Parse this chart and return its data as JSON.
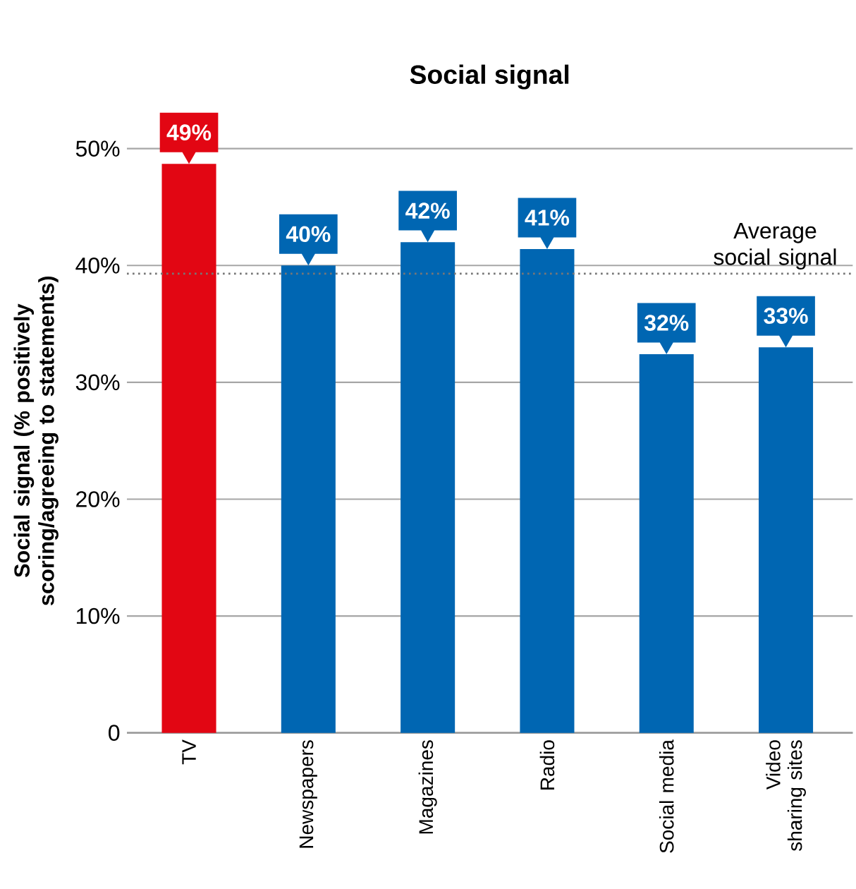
{
  "chart_data": {
    "type": "bar",
    "title": "Social signal",
    "ylabel": "Social signal (% positively scoring/agreeing to statements)",
    "categories": [
      "TV",
      "Newspapers",
      "Magazines",
      "Radio",
      "Social media",
      "Video sharing sites"
    ],
    "values": [
      48.7,
      40.0,
      42.0,
      41.4,
      32.4,
      33.0
    ],
    "value_labels": [
      "49%",
      "40%",
      "42%",
      "41%",
      "32%",
      "33%"
    ],
    "colors": [
      "#e20613",
      "#0066b2",
      "#0066b2",
      "#0066b2",
      "#0066b2",
      "#0066b2"
    ],
    "ylim": [
      0,
      50
    ],
    "yticks": [
      0,
      {
        "value": 10,
        "label": "10%"
      },
      {
        "value": 20,
        "label": "20%"
      },
      {
        "value": 30,
        "label": "30%"
      },
      {
        "value": 40,
        "label": "40%"
      },
      {
        "value": 50,
        "label": "50%"
      }
    ],
    "grid": "y",
    "ref_lines": [
      {
        "axis": "y",
        "value": 39.3,
        "label": "Average social signal",
        "color": "#777777",
        "line_style": "dotted"
      }
    ]
  }
}
